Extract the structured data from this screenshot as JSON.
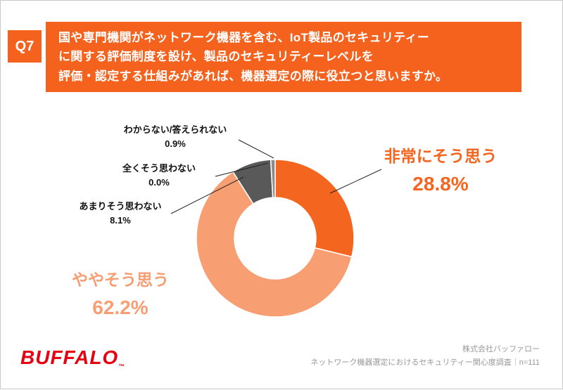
{
  "header": {
    "tag": "Q7",
    "question_lines": [
      "国や専門機関がネットワーク機器を含む、IoT製品のセキュリティー",
      "に関する評価制度を設け、製品のセキュリティーレベルを",
      "評価・認定する仕組みがあれば、機器選定の際に役立つと思いますか。"
    ]
  },
  "chart_data": {
    "type": "pie",
    "subtype": "donut",
    "title": "",
    "categories": [
      "非常にそう思う",
      "ややそう思う",
      "あまりそう思わない",
      "全くそう思わない",
      "わからない/答えられない"
    ],
    "values": [
      28.8,
      62.2,
      8.1,
      0.0,
      0.9
    ],
    "value_labels": [
      "28.8%",
      "62.2%",
      "8.1%",
      "0.0%",
      "0.9%"
    ],
    "colors": [
      "#F4651F",
      "#F89E73",
      "#595959",
      "#BFBFBF",
      "#8C8C8C"
    ],
    "start_angle_deg": 0,
    "direction": "clockwise",
    "hole_ratio": 0.52,
    "legend_position": "none",
    "grid": false
  },
  "colors": {
    "header_orange": "#F4621D",
    "strong_agree_orange": "#F4651F",
    "somewhat_agree_orange": "#F89E73",
    "disagree_gray": "#595959",
    "unknown_gray": "#8C8C8C",
    "logo_red": "#E60012",
    "credit_gray": "#999999"
  },
  "footer": {
    "logo": "BUFFALO",
    "logo_tm": "™",
    "credit_lines": [
      "株式会社バッファロー",
      "ネットワーク機器選定におけるセキュリティー関心度調査｜n=111"
    ]
  }
}
